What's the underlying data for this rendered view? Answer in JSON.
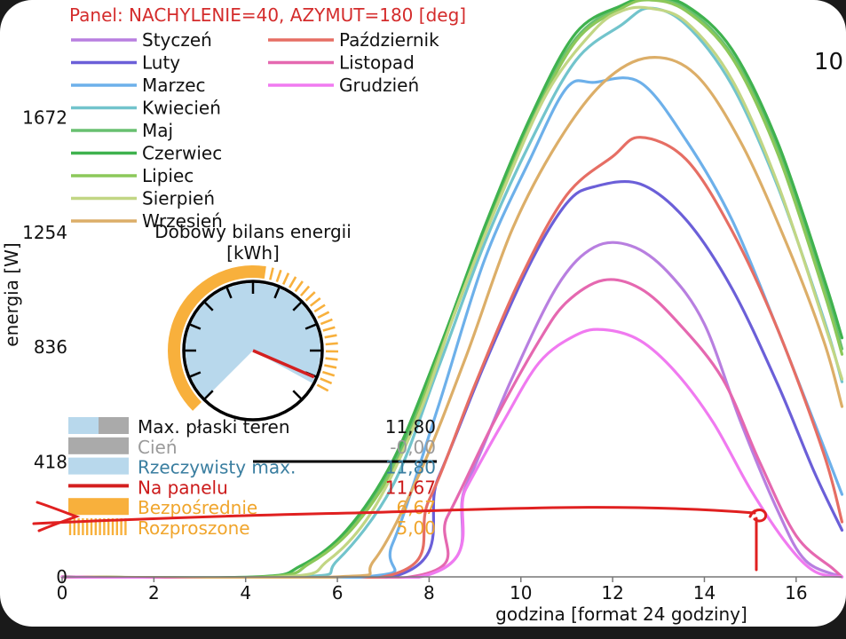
{
  "chart_data": {
    "type": "line",
    "title": "Panel: NACHYLENIE=40, AZYMUT=180 [deg]",
    "xlabel": "godzina [format 24 godziny]",
    "ylabel": "energia [W]",
    "xlim": [
      0,
      17
    ],
    "ylim": [
      0,
      2090
    ],
    "x_ticks": [
      "0",
      "2",
      "4",
      "6",
      "8",
      "10",
      "12",
      "14",
      "16"
    ],
    "y_ticks": [
      "0",
      "418",
      "836",
      "1254",
      "1672"
    ],
    "corner_label": "10",
    "legend_position": "top-left",
    "grid": false,
    "series": [
      {
        "name": "Styczeń",
        "color": "#b87fe0",
        "points": [
          [
            7.8,
            0
          ],
          [
            8.8,
            330
          ],
          [
            9.8,
            720
          ],
          [
            10.8,
            1060
          ],
          [
            11.6,
            1200
          ],
          [
            12.4,
            1205
          ],
          [
            13.2,
            1110
          ],
          [
            14.0,
            920
          ],
          [
            14.8,
            560
          ],
          [
            15.6,
            240
          ],
          [
            16.2,
            60
          ],
          [
            17,
            0
          ]
        ]
      },
      {
        "name": "Luty",
        "color": "#6b5fd8",
        "points": [
          [
            7.2,
            0
          ],
          [
            8.2,
            360
          ],
          [
            9.2,
            770
          ],
          [
            10.2,
            1140
          ],
          [
            11.0,
            1360
          ],
          [
            11.6,
            1420
          ],
          [
            12.6,
            1430
          ],
          [
            13.6,
            1300
          ],
          [
            14.6,
            1050
          ],
          [
            15.6,
            700
          ],
          [
            16.4,
            380
          ],
          [
            17,
            170
          ]
        ]
      },
      {
        "name": "Marzec",
        "color": "#6db0ea",
        "points": [
          [
            6.6,
            0
          ],
          [
            7.2,
            120
          ],
          [
            8.2,
            620
          ],
          [
            9.2,
            1150
          ],
          [
            10.2,
            1520
          ],
          [
            11.0,
            1780
          ],
          [
            11.6,
            1800
          ],
          [
            12.6,
            1800
          ],
          [
            13.6,
            1590
          ],
          [
            14.6,
            1300
          ],
          [
            15.6,
            900
          ],
          [
            16.4,
            560
          ],
          [
            17,
            300
          ]
        ]
      },
      {
        "name": "Kwiecień",
        "color": "#72c4cc",
        "points": [
          [
            5.2,
            0
          ],
          [
            6.0,
            60
          ],
          [
            7.2,
            330
          ],
          [
            8.2,
            760
          ],
          [
            9.2,
            1210
          ],
          [
            10.2,
            1580
          ],
          [
            11.2,
            1880
          ],
          [
            12.2,
            2010
          ],
          [
            12.8,
            2070
          ],
          [
            13.6,
            2010
          ],
          [
            14.6,
            1790
          ],
          [
            15.6,
            1420
          ],
          [
            16.6,
            940
          ],
          [
            17,
            710
          ]
        ]
      },
      {
        "name": "Maj",
        "color": "#68c070",
        "points": [
          [
            4.4,
            0
          ],
          [
            5.4,
            50
          ],
          [
            6.4,
            200
          ],
          [
            7.4,
            470
          ],
          [
            8.2,
            820
          ],
          [
            9.2,
            1260
          ],
          [
            10.2,
            1660
          ],
          [
            11.2,
            1960
          ],
          [
            12.2,
            2080
          ],
          [
            12.8,
            2100
          ],
          [
            13.6,
            2070
          ],
          [
            14.6,
            1900
          ],
          [
            15.6,
            1560
          ],
          [
            16.6,
            1060
          ],
          [
            17,
            830
          ]
        ]
      },
      {
        "name": "Czerwiec",
        "color": "#3fb24e",
        "points": [
          [
            4.2,
            0
          ],
          [
            5.2,
            40
          ],
          [
            6.2,
            170
          ],
          [
            7.2,
            420
          ],
          [
            8.2,
            820
          ],
          [
            9.2,
            1270
          ],
          [
            10.2,
            1670
          ],
          [
            11.2,
            1980
          ],
          [
            12.2,
            2080
          ],
          [
            12.8,
            2110
          ],
          [
            13.6,
            2080
          ],
          [
            14.6,
            1920
          ],
          [
            15.6,
            1580
          ],
          [
            16.6,
            1090
          ],
          [
            17,
            870
          ]
        ]
      },
      {
        "name": "Lipiec",
        "color": "#8cc85a",
        "points": [
          [
            4.4,
            0
          ],
          [
            5.4,
            50
          ],
          [
            6.4,
            190
          ],
          [
            7.4,
            450
          ],
          [
            8.2,
            800
          ],
          [
            9.2,
            1240
          ],
          [
            10.2,
            1640
          ],
          [
            11.2,
            1950
          ],
          [
            12.2,
            2070
          ],
          [
            12.8,
            2100
          ],
          [
            13.6,
            2060
          ],
          [
            14.6,
            1890
          ],
          [
            15.6,
            1540
          ],
          [
            16.6,
            1040
          ],
          [
            17,
            810
          ]
        ]
      },
      {
        "name": "Sierpień",
        "color": "#c2d684",
        "points": [
          [
            4.8,
            0
          ],
          [
            5.8,
            60
          ],
          [
            6.8,
            250
          ],
          [
            7.8,
            600
          ],
          [
            8.6,
            980
          ],
          [
            9.6,
            1400
          ],
          [
            10.6,
            1770
          ],
          [
            11.6,
            1990
          ],
          [
            12.2,
            2060
          ],
          [
            12.8,
            2070
          ],
          [
            13.6,
            2020
          ],
          [
            14.6,
            1810
          ],
          [
            15.6,
            1430
          ],
          [
            16.6,
            930
          ],
          [
            17,
            720
          ]
        ]
      },
      {
        "name": "Wrzesień",
        "color": "#dcae68",
        "points": [
          [
            6.0,
            0
          ],
          [
            6.8,
            60
          ],
          [
            7.8,
            380
          ],
          [
            8.8,
            800
          ],
          [
            9.8,
            1260
          ],
          [
            10.8,
            1580
          ],
          [
            11.8,
            1800
          ],
          [
            12.8,
            1890
          ],
          [
            13.8,
            1830
          ],
          [
            14.8,
            1580
          ],
          [
            15.8,
            1210
          ],
          [
            16.6,
            860
          ],
          [
            17,
            620
          ]
        ]
      },
      {
        "name": "Październik",
        "color": "#e66e64",
        "points": [
          [
            7.0,
            0
          ],
          [
            8.0,
            280
          ],
          [
            9.0,
            700
          ],
          [
            10.0,
            1090
          ],
          [
            11.0,
            1390
          ],
          [
            12.0,
            1530
          ],
          [
            12.6,
            1600
          ],
          [
            13.6,
            1520
          ],
          [
            14.6,
            1260
          ],
          [
            15.6,
            900
          ],
          [
            16.6,
            450
          ],
          [
            17,
            200
          ]
        ]
      },
      {
        "name": "Listopad",
        "color": "#e568b0",
        "points": [
          [
            7.6,
            0
          ],
          [
            8.4,
            220
          ],
          [
            9.4,
            560
          ],
          [
            10.4,
            860
          ],
          [
            11.0,
            1000
          ],
          [
            11.8,
            1080
          ],
          [
            12.6,
            1050
          ],
          [
            13.4,
            930
          ],
          [
            14.4,
            720
          ],
          [
            15.2,
            420
          ],
          [
            16.0,
            150
          ],
          [
            16.8,
            30
          ],
          [
            17,
            0
          ]
        ]
      },
      {
        "name": "Grudzień",
        "color": "#f07af0",
        "points": [
          [
            7.8,
            0
          ],
          [
            8.8,
            320
          ],
          [
            9.6,
            560
          ],
          [
            10.4,
            780
          ],
          [
            11.2,
            880
          ],
          [
            11.8,
            900
          ],
          [
            12.6,
            860
          ],
          [
            13.4,
            740
          ],
          [
            14.2,
            560
          ],
          [
            15.0,
            320
          ],
          [
            15.8,
            120
          ],
          [
            16.4,
            20
          ],
          [
            17,
            0
          ]
        ]
      }
    ],
    "gauge": {
      "title_line1": "Dobowy bilans energii",
      "title_line2": "[kWh]",
      "ticks": 12,
      "face_color": "#b8d8ec",
      "direct_color": "#f8b03c",
      "needle_color": "#d42020",
      "fraction_max": 0.94,
      "fraction_panel": 0.92,
      "fraction_direct": 0.53
    },
    "balance": [
      {
        "label": "Max. płaski teren",
        "value": "11,80",
        "label_color": "#111111",
        "value_color": "#111111",
        "swatch": "max"
      },
      {
        "label": "Cień",
        "value": "-0,00",
        "label_color": "#9a9a9a",
        "value_color": "#9a9a9a",
        "swatch": "shadow"
      },
      {
        "label": "Rzeczywisty max.",
        "value": "11,80",
        "label_color": "#3a7ea0",
        "value_color": "#3a7ea0",
        "swatch": "real"
      },
      {
        "label": "Na panelu",
        "value": "11,67",
        "label_color": "#cc1a1a",
        "value_color": "#cc1a1a",
        "swatch": "panel"
      },
      {
        "label": "Bezpośrednie",
        "value": "6,67",
        "label_color": "#f0a52c",
        "value_color": "#f0a52c",
        "swatch": "direct"
      },
      {
        "label": "Rozproszone",
        "value": "5,00",
        "label_color": "#f0a52c",
        "value_color": "#f0a52c",
        "swatch": "diffuse"
      }
    ],
    "annotation": {
      "type": "hand-drawn-arrow",
      "color": "#e02020",
      "y_value": 240,
      "x_start": 0,
      "x_end": 15.2
    }
  }
}
